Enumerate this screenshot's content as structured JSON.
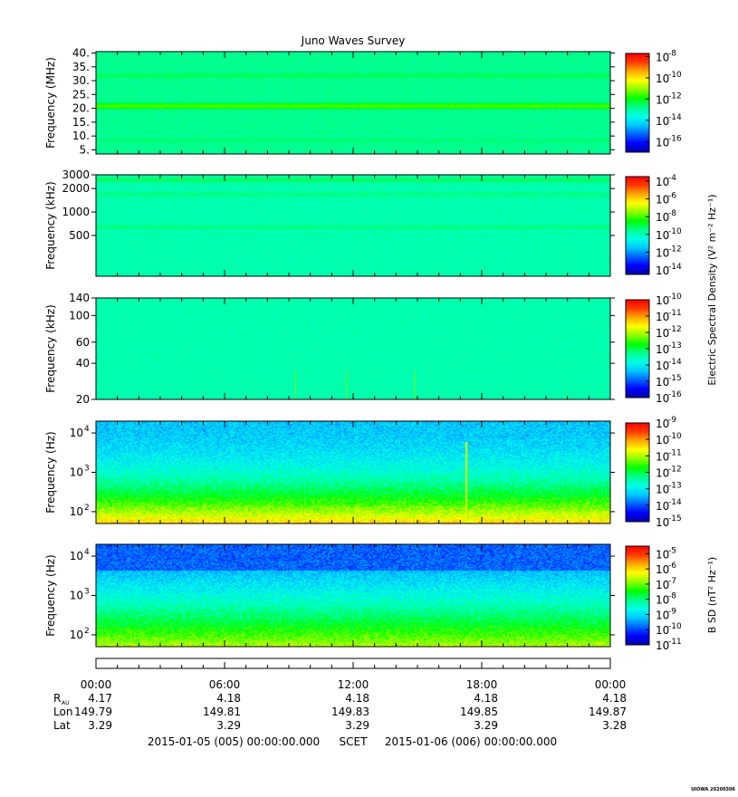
{
  "title": "Juno Waves Survey",
  "colors": {
    "scale": [
      "#0000a8",
      "#0000ff",
      "#0064ff",
      "#00c8ff",
      "#00ffe6",
      "#00ff8c",
      "#00ff00",
      "#8cff00",
      "#ffff00",
      "#ffaa00",
      "#ff3c00",
      "#ff0000"
    ]
  },
  "chart_data": [
    {
      "type": "heatmap",
      "ylabel": "Frequency (MHz)",
      "ytick_labels": [
        "40.",
        "35.",
        "30.",
        "25.",
        "20.",
        "15.",
        "10.",
        "5."
      ],
      "yticks": [
        40,
        35,
        30,
        25,
        20,
        15,
        10,
        5
      ],
      "ylim": [
        3.5,
        40.5
      ],
      "yscale": "linear",
      "colorbar": {
        "tick_exponents": [
          "-8",
          "-10",
          "-12",
          "-14",
          "-16"
        ],
        "range_exp": [
          -17,
          -7.7
        ]
      },
      "bands": [
        {
          "f": 21,
          "level": 0.62,
          "width": 1.0
        },
        {
          "f": 32,
          "level": 0.5,
          "width": 0.8
        },
        {
          "f": 8.5,
          "level": 0.48,
          "width": 0.6
        }
      ],
      "base_level": 0.45
    },
    {
      "type": "heatmap",
      "ylabel": "Frequency (kHz)",
      "ytick_labels": [
        "3000",
        "2000",
        "1000",
        "500"
      ],
      "yticks": [
        3000,
        2000,
        1000,
        500
      ],
      "ylim": [
        150,
        3000
      ],
      "yscale": "log",
      "colorbar": {
        "tick_exponents": [
          "-4",
          "-6",
          "-8",
          "-10",
          "-12",
          "-14"
        ],
        "range_exp": [
          -14.5,
          -3.5
        ]
      },
      "bands": [
        {
          "f": 2600,
          "level": 0.5,
          "width": 0.03
        },
        {
          "f": 1700,
          "level": 0.47,
          "width": 0.03
        },
        {
          "f": 650,
          "level": 0.47,
          "width": 0.03
        }
      ],
      "base_level": 0.42
    },
    {
      "type": "heatmap",
      "ylabel": "Frequency (kHz)",
      "ytick_labels": [
        "140",
        "100",
        "60",
        "40",
        "20"
      ],
      "yticks": [
        140,
        100,
        60,
        40,
        20
      ],
      "ylim": [
        20,
        140
      ],
      "yscale": "log",
      "colorbar": {
        "tick_exponents": [
          "-10",
          "-11",
          "-12",
          "-13",
          "-14",
          "-15",
          "-16"
        ],
        "range_exp": [
          -16,
          -10
        ]
      },
      "bands": [],
      "base_level": 0.42
    },
    {
      "type": "heatmap",
      "ylabel": "Frequency (Hz)",
      "ytick_labels": [
        "10",
        "10",
        "10"
      ],
      "ytick_exponents": [
        "4",
        "3",
        "2"
      ],
      "yticks": [
        10000,
        1000,
        100
      ],
      "ylim": [
        50,
        20000
      ],
      "yscale": "log",
      "colorbar": {
        "tick_exponents": [
          "-9",
          "-10",
          "-11",
          "-12",
          "-13",
          "-14",
          "-15"
        ],
        "range_exp": [
          -15,
          -9
        ]
      },
      "bands": [],
      "base_level": 0.3
    },
    {
      "type": "heatmap",
      "ylabel": "Frequency (Hz)",
      "ytick_labels": [
        "10",
        "10",
        "10"
      ],
      "ytick_exponents": [
        "4",
        "3",
        "2"
      ],
      "yticks": [
        10000,
        1000,
        100
      ],
      "ylim": [
        50,
        20000
      ],
      "yscale": "log",
      "colorbar": {
        "tick_exponents": [
          "-5",
          "-6",
          "-7",
          "-8",
          "-9",
          "-10",
          "-11"
        ],
        "range_exp": [
          -11,
          -4.5
        ]
      },
      "bands": [],
      "base_level": 0.3
    }
  ],
  "colorbar_labels": {
    "electric": "Electric Spectral Density (V² m⁻² Hz⁻¹)",
    "magnetic": "B SD (nT² Hz⁻¹)"
  },
  "colorbar_base": "10",
  "time_axis": {
    "tick_labels": [
      "00:00",
      "06:00",
      "12:00",
      "18:00",
      "00:00"
    ],
    "row_labels": [
      "R",
      "Lon",
      "Lat"
    ],
    "row_label_sub": "AU",
    "R_values": [
      "4.17",
      "4.18",
      "4.18",
      "4.18",
      "4.18"
    ],
    "Lon_values": [
      "149.79",
      "149.81",
      "149.83",
      "149.85",
      "149.87"
    ],
    "Lat_values": [
      "3.29",
      "3.29",
      "3.29",
      "3.29",
      "3.28"
    ]
  },
  "footer": {
    "start": "2015-01-05 (005) 00:00:00.000",
    "scet": "SCET",
    "end": "2015-01-06 (006) 00:00:00.000"
  },
  "credit": "UIOWA 20200306"
}
